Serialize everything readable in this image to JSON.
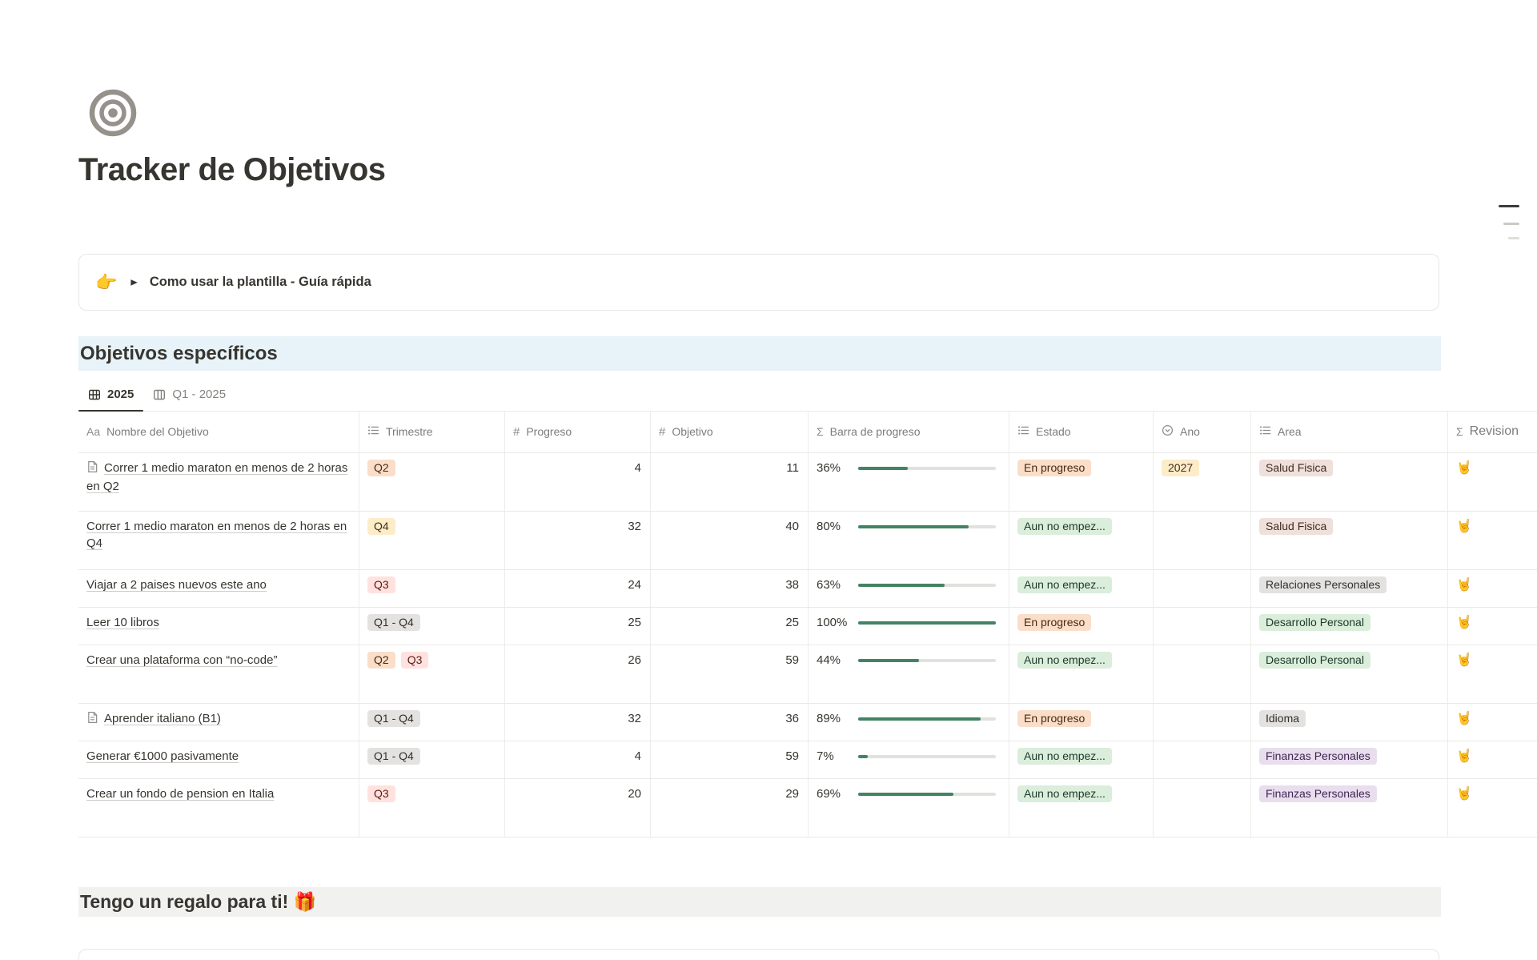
{
  "page": {
    "title": "Tracker de Objetivos",
    "icon": "bullseye-target-icon",
    "callout": {
      "emoji": "👉",
      "toggle_icon": "▶",
      "text": "Como usar la plantilla - Guía rápida"
    },
    "section_heading": "Objetivos específicos",
    "gift_heading": "Tengo un regalo para ti! 🎁"
  },
  "tabs": [
    {
      "label": "2025",
      "icon": "table-view-icon",
      "active": true
    },
    {
      "label": "Q1 - 2025",
      "icon": "board-view-icon",
      "active": false
    }
  ],
  "table": {
    "columns": [
      {
        "label": "Nombre del Objetivo",
        "icon": "text-type-icon"
      },
      {
        "label": "Trimestre",
        "icon": "multi-select-icon"
      },
      {
        "label": "Progreso",
        "icon": "number-icon"
      },
      {
        "label": "Objetivo",
        "icon": "number-icon"
      },
      {
        "label": "Barra de progreso",
        "icon": "formula-sigma-icon"
      },
      {
        "label": "Estado",
        "icon": "multi-select-icon"
      },
      {
        "label": "Ano",
        "icon": "select-icon"
      },
      {
        "label": "Area",
        "icon": "multi-select-icon"
      },
      {
        "label": "Revision",
        "icon": "formula-sigma-icon"
      }
    ],
    "rows": [
      {
        "name": "Correr 1 medio maraton en menos de 2 horas en Q2",
        "has_page_icon": true,
        "trimestre": [
          {
            "label": "Q2",
            "color": "orange"
          }
        ],
        "progreso": "4",
        "objetivo": "11",
        "percent": "36%",
        "percent_value": 36,
        "estado": {
          "label": "En progreso",
          "color": "orange"
        },
        "ano": {
          "label": "2027",
          "color": "yellow"
        },
        "area": {
          "label": "Salud Fisica",
          "color": "brown"
        },
        "revision": "🤘"
      },
      {
        "name": "Correr 1 medio maraton en menos de 2 horas en Q4",
        "has_page_icon": false,
        "trimestre": [
          {
            "label": "Q4",
            "color": "yellow"
          }
        ],
        "progreso": "32",
        "objetivo": "40",
        "percent": "80%",
        "percent_value": 80,
        "estado": {
          "label": "Aun no empez...",
          "color": "green"
        },
        "ano": null,
        "area": {
          "label": "Salud Fisica",
          "color": "brown"
        },
        "revision": "🤘"
      },
      {
        "name": "Viajar a 2 paises nuevos este ano",
        "has_page_icon": false,
        "trimestre": [
          {
            "label": "Q3",
            "color": "red"
          }
        ],
        "progreso": "24",
        "objetivo": "38",
        "percent": "63%",
        "percent_value": 63,
        "estado": {
          "label": "Aun no empez...",
          "color": "green"
        },
        "ano": null,
        "area": {
          "label": "Relaciones Personales",
          "color": "gray"
        },
        "revision": "🤘"
      },
      {
        "name": "Leer 10 libros",
        "has_page_icon": false,
        "trimestre": [
          {
            "label": "Q1 - Q4",
            "color": "gray"
          }
        ],
        "progreso": "25",
        "objetivo": "25",
        "percent": "100%",
        "percent_value": 100,
        "estado": {
          "label": "En progreso",
          "color": "orange"
        },
        "ano": null,
        "area": {
          "label": "Desarrollo Personal",
          "color": "green"
        },
        "revision": "🤘"
      },
      {
        "name": "Crear una plataforma con “no-code”",
        "has_page_icon": false,
        "trimestre": [
          {
            "label": "Q2",
            "color": "orange"
          },
          {
            "label": "Q3",
            "color": "red"
          }
        ],
        "progreso": "26",
        "objetivo": "59",
        "percent": "44%",
        "percent_value": 44,
        "estado": {
          "label": "Aun no empez...",
          "color": "green"
        },
        "ano": null,
        "area": {
          "label": "Desarrollo Personal",
          "color": "green"
        },
        "revision": "🤘"
      },
      {
        "name": "Aprender italiano (B1)",
        "has_page_icon": true,
        "trimestre": [
          {
            "label": "Q1 - Q4",
            "color": "gray"
          }
        ],
        "progreso": "32",
        "objetivo": "36",
        "percent": "89%",
        "percent_value": 89,
        "estado": {
          "label": "En progreso",
          "color": "orange"
        },
        "ano": null,
        "area": {
          "label": "Idioma",
          "color": "gray"
        },
        "revision": "🤘"
      },
      {
        "name": "Generar €1000 pasivamente",
        "has_page_icon": false,
        "trimestre": [
          {
            "label": "Q1 - Q4",
            "color": "gray"
          }
        ],
        "progreso": "4",
        "objetivo": "59",
        "percent": "7%",
        "percent_value": 7,
        "estado": {
          "label": "Aun no empez...",
          "color": "green"
        },
        "ano": null,
        "area": {
          "label": "Finanzas Personales",
          "color": "purple"
        },
        "revision": "🤘"
      },
      {
        "name": "Crear un fondo de pension en Italia",
        "has_page_icon": false,
        "trimestre": [
          {
            "label": "Q3",
            "color": "red"
          }
        ],
        "progreso": "20",
        "objetivo": "29",
        "percent": "69%",
        "percent_value": 69,
        "estado": {
          "label": "Aun no empez...",
          "color": "green"
        },
        "ano": null,
        "area": {
          "label": "Finanzas Personales",
          "color": "purple"
        },
        "revision": "🤘"
      }
    ]
  },
  "palette": {
    "tag_colors": {
      "orange": {
        "bg": "#FADEC9",
        "text": "#49290E"
      },
      "yellow": {
        "bg": "#FDECC8",
        "text": "#402C1B"
      },
      "red": {
        "bg": "#FFE2DD",
        "text": "#5D1715"
      },
      "gray": {
        "bg": "#E3E2E0",
        "text": "#32302C"
      },
      "green": {
        "bg": "#DBEDDB",
        "text": "#1C3829"
      },
      "brown": {
        "bg": "#EEE0DA",
        "text": "#442A1E"
      },
      "purple": {
        "bg": "#E8DEEE",
        "text": "#412454"
      }
    },
    "progress_fill": "#448361",
    "progress_track": "#E1E1DE",
    "section_highlight": "#E7F3F8",
    "gift_highlight": "#F1F1EF"
  }
}
